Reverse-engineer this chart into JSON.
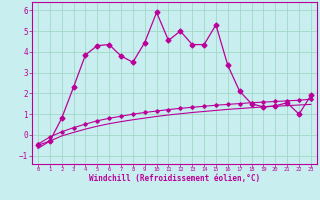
{
  "xlabel": "Windchill (Refroidissement éolien,°C)",
  "background_color": "#c8eef0",
  "grid_color": "#a0d8c8",
  "line_color": "#bb0099",
  "xlim": [
    -0.5,
    23.5
  ],
  "ylim": [
    -1.4,
    6.4
  ],
  "xticks": [
    0,
    1,
    2,
    3,
    4,
    5,
    6,
    7,
    8,
    9,
    10,
    11,
    12,
    13,
    14,
    15,
    16,
    17,
    18,
    19,
    20,
    21,
    22,
    23
  ],
  "yticks": [
    -1,
    0,
    1,
    2,
    3,
    4,
    5,
    6
  ],
  "series1_x": [
    0,
    1,
    2,
    3,
    4,
    5,
    6,
    7,
    8,
    9,
    10,
    11,
    12,
    13,
    14,
    15,
    16,
    17,
    18,
    19,
    20,
    21,
    22,
    23
  ],
  "series1_y": [
    -0.5,
    -0.3,
    0.8,
    2.3,
    3.85,
    4.3,
    4.35,
    3.8,
    3.5,
    4.45,
    5.9,
    4.55,
    5.0,
    4.35,
    4.35,
    5.3,
    3.35,
    2.1,
    1.5,
    1.35,
    1.4,
    1.55,
    1.0,
    1.9
  ],
  "series2_x": [
    0,
    1,
    2,
    3,
    4,
    5,
    6,
    7,
    8,
    9,
    10,
    11,
    12,
    13,
    14,
    15,
    16,
    17,
    18,
    19,
    20,
    21,
    22,
    23
  ],
  "series2_y": [
    -0.45,
    -0.1,
    0.15,
    0.35,
    0.52,
    0.68,
    0.8,
    0.9,
    1.0,
    1.08,
    1.15,
    1.22,
    1.28,
    1.33,
    1.38,
    1.43,
    1.47,
    1.51,
    1.55,
    1.58,
    1.61,
    1.64,
    1.67,
    1.72
  ],
  "series3_x": [
    0,
    1,
    2,
    3,
    4,
    5,
    6,
    7,
    8,
    9,
    10,
    11,
    12,
    13,
    14,
    15,
    16,
    17,
    18,
    19,
    20,
    21,
    22,
    23
  ],
  "series3_y": [
    -0.65,
    -0.3,
    -0.05,
    0.12,
    0.28,
    0.42,
    0.54,
    0.64,
    0.73,
    0.81,
    0.89,
    0.96,
    1.02,
    1.08,
    1.13,
    1.18,
    1.23,
    1.27,
    1.31,
    1.35,
    1.38,
    1.41,
    1.44,
    1.47
  ]
}
